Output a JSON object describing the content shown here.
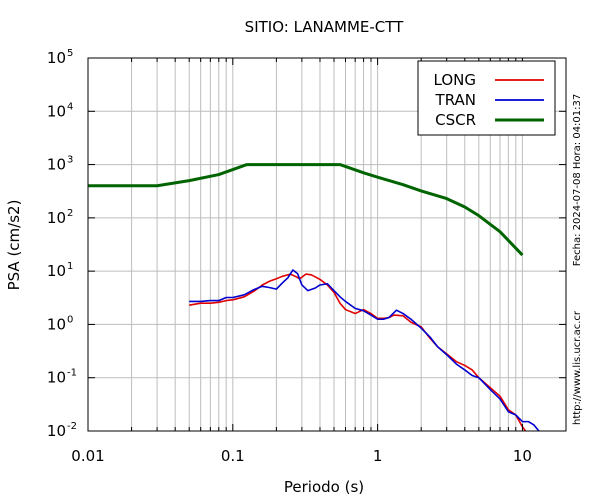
{
  "chart_data": {
    "type": "line",
    "title": "SITIO: LANAMME-CTT",
    "xlabel": "Periodo (s)",
    "ylabel": "PSA (cm/s2)",
    "xscale": "log",
    "yscale": "log",
    "xlim": [
      0.01,
      20
    ],
    "ylim": [
      0.01,
      100000
    ],
    "grid": true,
    "legend_position": "top-right",
    "x_tick_labels": [
      {
        "value": 0.01,
        "label": "0.01"
      },
      {
        "value": 0.1,
        "label": "0.1"
      },
      {
        "value": 1,
        "label": "1"
      },
      {
        "value": 10,
        "label": "10"
      }
    ],
    "y_tick_labels": [
      {
        "value": 0.01,
        "base": "10",
        "exp": "-2"
      },
      {
        "value": 0.1,
        "base": "10",
        "exp": "-1"
      },
      {
        "value": 1,
        "base": "10",
        "exp": "0"
      },
      {
        "value": 10,
        "base": "10",
        "exp": "1"
      },
      {
        "value": 100,
        "base": "10",
        "exp": "2"
      },
      {
        "value": 1000,
        "base": "10",
        "exp": "3"
      },
      {
        "value": 10000,
        "base": "10",
        "exp": "4"
      },
      {
        "value": 100000,
        "base": "10",
        "exp": "5"
      }
    ],
    "side_text_1": "Fecha: 2024-07-08 Hora: 04:01:37",
    "side_text_2": "http://www.lis.ucr.ac.cr",
    "series": [
      {
        "name": "LONG",
        "color": "#e00000",
        "points": [
          [
            0.05,
            2.3
          ],
          [
            0.06,
            2.5
          ],
          [
            0.07,
            2.5
          ],
          [
            0.08,
            2.6
          ],
          [
            0.09,
            2.8
          ],
          [
            0.1,
            2.9
          ],
          [
            0.12,
            3.3
          ],
          [
            0.14,
            4.2
          ],
          [
            0.16,
            5.5
          ],
          [
            0.18,
            6.5
          ],
          [
            0.2,
            7.2
          ],
          [
            0.22,
            8.0
          ],
          [
            0.25,
            8.8
          ],
          [
            0.27,
            8.0
          ],
          [
            0.29,
            7.2
          ],
          [
            0.32,
            8.8
          ],
          [
            0.35,
            8.5
          ],
          [
            0.4,
            7.0
          ],
          [
            0.45,
            5.5
          ],
          [
            0.5,
            4.0
          ],
          [
            0.55,
            2.5
          ],
          [
            0.6,
            1.9
          ],
          [
            0.7,
            1.6
          ],
          [
            0.8,
            1.9
          ],
          [
            0.9,
            1.6
          ],
          [
            1.0,
            1.3
          ],
          [
            1.1,
            1.3
          ],
          [
            1.2,
            1.35
          ],
          [
            1.3,
            1.5
          ],
          [
            1.5,
            1.45
          ],
          [
            1.7,
            1.1
          ],
          [
            2.0,
            0.9
          ],
          [
            2.3,
            0.55
          ],
          [
            2.6,
            0.38
          ],
          [
            3.0,
            0.28
          ],
          [
            3.5,
            0.2
          ],
          [
            4.0,
            0.17
          ],
          [
            4.5,
            0.14
          ],
          [
            5.0,
            0.1
          ],
          [
            6.0,
            0.065
          ],
          [
            7.0,
            0.045
          ],
          [
            8.0,
            0.025
          ],
          [
            9.0,
            0.02
          ],
          [
            10.0,
            0.012
          ],
          [
            10.5,
            0.01
          ]
        ]
      },
      {
        "name": "TRAN",
        "color": "#0000d0",
        "points": [
          [
            0.05,
            2.7
          ],
          [
            0.06,
            2.7
          ],
          [
            0.07,
            2.8
          ],
          [
            0.08,
            2.8
          ],
          [
            0.09,
            3.2
          ],
          [
            0.1,
            3.2
          ],
          [
            0.12,
            3.6
          ],
          [
            0.14,
            4.5
          ],
          [
            0.16,
            5.2
          ],
          [
            0.18,
            4.9
          ],
          [
            0.2,
            4.6
          ],
          [
            0.22,
            6.0
          ],
          [
            0.24,
            7.5
          ],
          [
            0.26,
            10.5
          ],
          [
            0.28,
            9.0
          ],
          [
            0.3,
            5.5
          ],
          [
            0.33,
            4.3
          ],
          [
            0.37,
            4.8
          ],
          [
            0.4,
            5.5
          ],
          [
            0.45,
            5.8
          ],
          [
            0.5,
            4.3
          ],
          [
            0.55,
            3.3
          ],
          [
            0.6,
            2.7
          ],
          [
            0.7,
            2.0
          ],
          [
            0.8,
            1.8
          ],
          [
            0.9,
            1.5
          ],
          [
            1.0,
            1.25
          ],
          [
            1.1,
            1.25
          ],
          [
            1.2,
            1.35
          ],
          [
            1.35,
            1.85
          ],
          [
            1.5,
            1.6
          ],
          [
            1.7,
            1.25
          ],
          [
            2.0,
            0.85
          ],
          [
            2.3,
            0.58
          ],
          [
            2.6,
            0.38
          ],
          [
            3.0,
            0.27
          ],
          [
            3.5,
            0.18
          ],
          [
            4.0,
            0.14
          ],
          [
            4.5,
            0.11
          ],
          [
            5.0,
            0.1
          ],
          [
            6.0,
            0.06
          ],
          [
            7.0,
            0.04
          ],
          [
            8.0,
            0.023
          ],
          [
            9.0,
            0.02
          ],
          [
            10.0,
            0.015
          ],
          [
            11.0,
            0.015
          ],
          [
            12.0,
            0.013
          ],
          [
            13.0,
            0.01
          ]
        ]
      },
      {
        "name": "CSCR",
        "color": "#006400",
        "points": [
          [
            0.01,
            400
          ],
          [
            0.03,
            400
          ],
          [
            0.05,
            500
          ],
          [
            0.08,
            650
          ],
          [
            0.125,
            1000
          ],
          [
            0.55,
            1000
          ],
          [
            0.8,
            700
          ],
          [
            1.0,
            580
          ],
          [
            1.5,
            420
          ],
          [
            2.0,
            320
          ],
          [
            3.0,
            230
          ],
          [
            4.0,
            160
          ],
          [
            5.0,
            110
          ],
          [
            7.0,
            55
          ],
          [
            10.0,
            20
          ]
        ]
      }
    ]
  }
}
